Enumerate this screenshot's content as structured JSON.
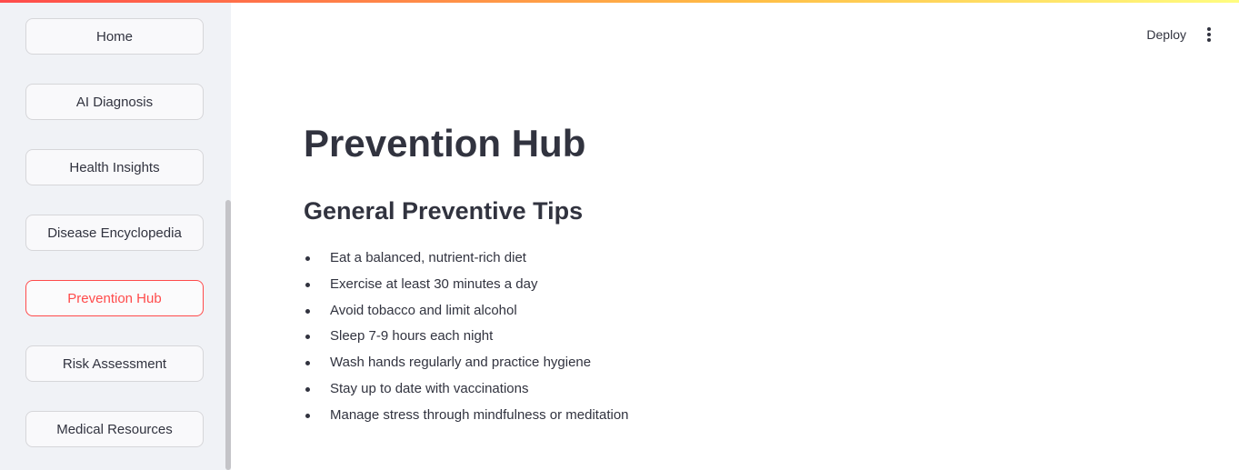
{
  "sidebar": {
    "items": [
      {
        "label": "Home"
      },
      {
        "label": "AI Diagnosis"
      },
      {
        "label": "Health Insights"
      },
      {
        "label": "Disease Encyclopedia"
      },
      {
        "label": "Prevention Hub"
      },
      {
        "label": "Risk Assessment"
      },
      {
        "label": "Medical Resources"
      }
    ],
    "active_item": "Prevention Hub"
  },
  "header": {
    "deploy_label": "Deploy",
    "menu_icon": "kebab-menu-icon"
  },
  "main": {
    "title": "Prevention Hub",
    "section_title": "General Preventive Tips",
    "tips": [
      "Eat a balanced, nutrient-rich diet",
      "Exercise at least 30 minutes a day",
      "Avoid tobacco and limit alcohol",
      "Sleep 7-9 hours each night",
      "Wash hands regularly and practice hygiene",
      "Stay up to date with vaccinations",
      "Manage stress through mindfulness or meditation"
    ]
  },
  "colors": {
    "accent": "#ff4b4b",
    "sidebar_bg": "#f0f2f6",
    "text": "#31333f"
  }
}
